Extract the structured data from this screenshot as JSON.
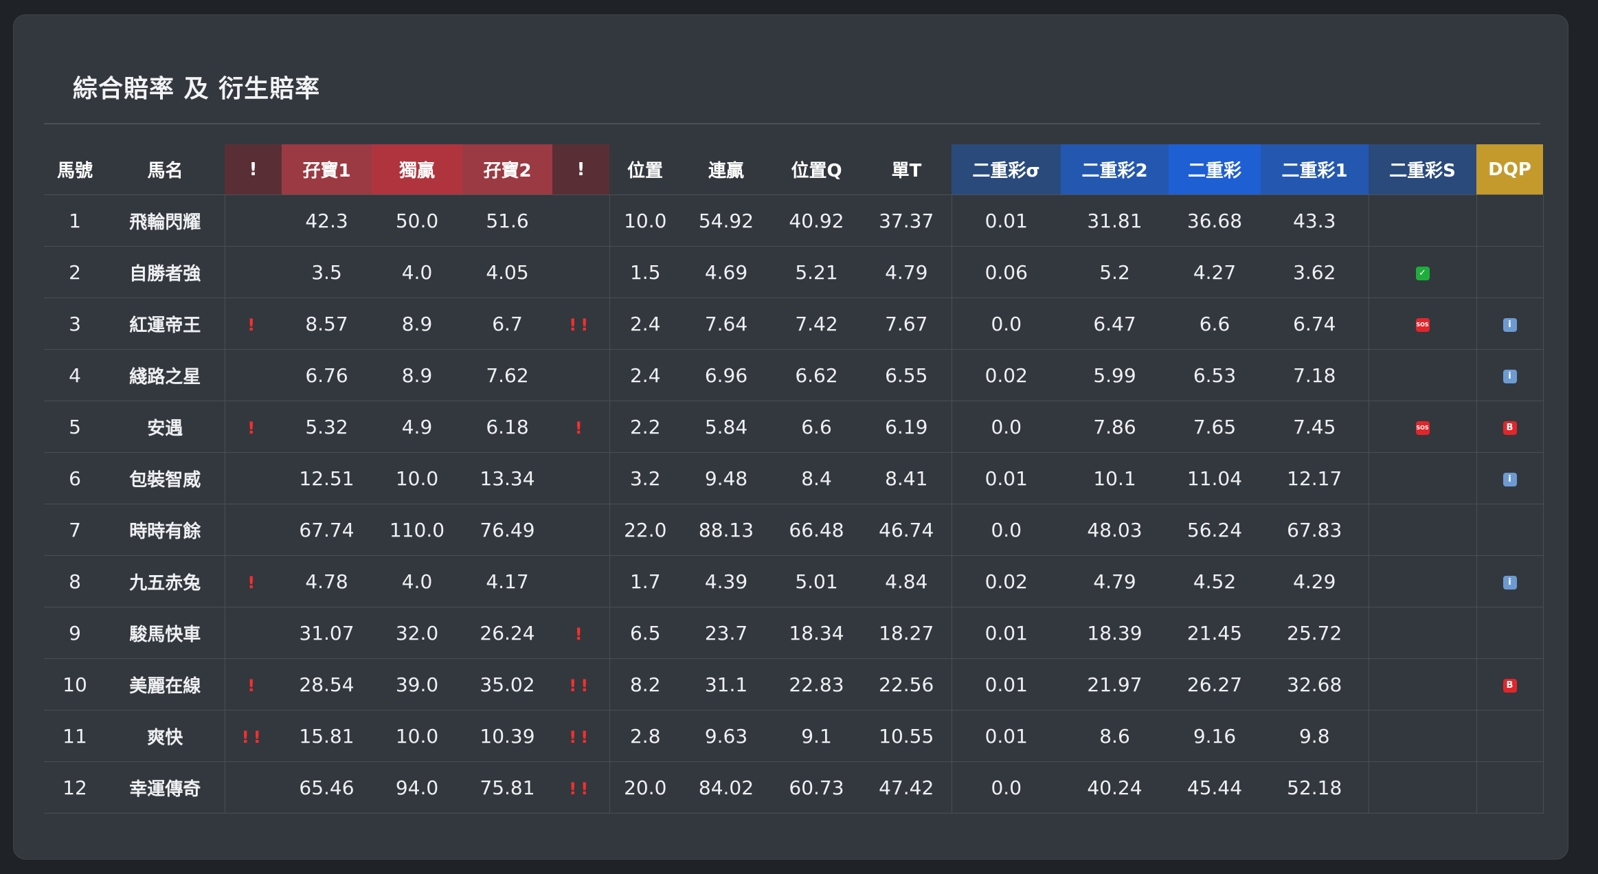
{
  "title": "綜合賠率 及 衍生賠率",
  "columns": [
    "馬號",
    "馬名",
    "!",
    "孖寶1",
    "獨贏",
    "孖寶2",
    "!",
    "位置",
    "連贏",
    "位置Q",
    "單T",
    "二重彩σ",
    "二重彩2",
    "二重彩",
    "二重彩1",
    "二重彩S",
    "DQP"
  ],
  "icons": {
    "check": "✓",
    "sos": "SOS",
    "info": "i",
    "b": "B"
  },
  "rows": [
    {
      "no": "1",
      "name": "飛輪閃耀",
      "f1": "",
      "dbl1": "42.3",
      "win": "50.0",
      "dbl2": "51.6",
      "f2": "",
      "place": "10.0",
      "qin": "54.92",
      "pq": "40.92",
      "tt": "37.37",
      "sig": "0.01",
      "ex2": "31.81",
      "ex": "36.68",
      "ex1": "43.3",
      "exs": "",
      "dqp": ""
    },
    {
      "no": "2",
      "name": "自勝者強",
      "f1": "",
      "dbl1": "3.5",
      "win": "4.0",
      "dbl2": "4.05",
      "f2": "",
      "place": "1.5",
      "qin": "4.69",
      "pq": "5.21",
      "tt": "4.79",
      "sig": "0.06",
      "ex2": "5.2",
      "ex": "4.27",
      "ex1": "3.62",
      "exs": "check",
      "dqp": ""
    },
    {
      "no": "3",
      "name": "紅運帝王",
      "f1": "!",
      "dbl1": "8.57",
      "win": "8.9",
      "dbl2": "6.7",
      "f2": "!!",
      "place": "2.4",
      "qin": "7.64",
      "pq": "7.42",
      "tt": "7.67",
      "sig": "0.0",
      "ex2": "6.47",
      "ex": "6.6",
      "ex1": "6.74",
      "exs": "sos",
      "dqp": "info"
    },
    {
      "no": "4",
      "name": "綫路之星",
      "f1": "",
      "dbl1": "6.76",
      "win": "8.9",
      "dbl2": "7.62",
      "f2": "",
      "place": "2.4",
      "qin": "6.96",
      "pq": "6.62",
      "tt": "6.55",
      "sig": "0.02",
      "ex2": "5.99",
      "ex": "6.53",
      "ex1": "7.18",
      "exs": "",
      "dqp": "info"
    },
    {
      "no": "5",
      "name": "安遇",
      "f1": "!",
      "dbl1": "5.32",
      "win": "4.9",
      "dbl2": "6.18",
      "f2": "!",
      "place": "2.2",
      "qin": "5.84",
      "pq": "6.6",
      "tt": "6.19",
      "sig": "0.0",
      "ex2": "7.86",
      "ex": "7.65",
      "ex1": "7.45",
      "exs": "sos",
      "dqp": "b"
    },
    {
      "no": "6",
      "name": "包裝智威",
      "f1": "",
      "dbl1": "12.51",
      "win": "10.0",
      "dbl2": "13.34",
      "f2": "",
      "place": "3.2",
      "qin": "9.48",
      "pq": "8.4",
      "tt": "8.41",
      "sig": "0.01",
      "ex2": "10.1",
      "ex": "11.04",
      "ex1": "12.17",
      "exs": "",
      "dqp": "info"
    },
    {
      "no": "7",
      "name": "時時有餘",
      "f1": "",
      "dbl1": "67.74",
      "win": "110.0",
      "dbl2": "76.49",
      "f2": "",
      "place": "22.0",
      "qin": "88.13",
      "pq": "66.48",
      "tt": "46.74",
      "sig": "0.0",
      "ex2": "48.03",
      "ex": "56.24",
      "ex1": "67.83",
      "exs": "",
      "dqp": ""
    },
    {
      "no": "8",
      "name": "九五赤兔",
      "f1": "!",
      "dbl1": "4.78",
      "win": "4.0",
      "dbl2": "4.17",
      "f2": "",
      "place": "1.7",
      "qin": "4.39",
      "pq": "5.01",
      "tt": "4.84",
      "sig": "0.02",
      "ex2": "4.79",
      "ex": "4.52",
      "ex1": "4.29",
      "exs": "",
      "dqp": "info"
    },
    {
      "no": "9",
      "name": "駿馬快車",
      "f1": "",
      "dbl1": "31.07",
      "win": "32.0",
      "dbl2": "26.24",
      "f2": "!",
      "place": "6.5",
      "qin": "23.7",
      "pq": "18.34",
      "tt": "18.27",
      "sig": "0.01",
      "ex2": "18.39",
      "ex": "21.45",
      "ex1": "25.72",
      "exs": "",
      "dqp": ""
    },
    {
      "no": "10",
      "name": "美麗在線",
      "f1": "!",
      "dbl1": "28.54",
      "win": "39.0",
      "dbl2": "35.02",
      "f2": "!!",
      "place": "8.2",
      "qin": "31.1",
      "pq": "22.83",
      "tt": "22.56",
      "sig": "0.01",
      "ex2": "21.97",
      "ex": "26.27",
      "ex1": "32.68",
      "exs": "",
      "dqp": "b"
    },
    {
      "no": "11",
      "name": "爽快",
      "f1": "!!",
      "dbl1": "15.81",
      "win": "10.0",
      "dbl2": "10.39",
      "f2": "!!",
      "place": "2.8",
      "qin": "9.63",
      "pq": "9.1",
      "tt": "10.55",
      "sig": "0.01",
      "ex2": "8.6",
      "ex": "9.16",
      "ex1": "9.8",
      "exs": "",
      "dqp": ""
    },
    {
      "no": "12",
      "name": "幸運傳奇",
      "f1": "",
      "dbl1": "65.46",
      "win": "94.0",
      "dbl2": "75.81",
      "f2": "!!",
      "place": "20.0",
      "qin": "84.02",
      "pq": "60.73",
      "tt": "47.42",
      "sig": "0.0",
      "ex2": "40.24",
      "ex": "45.44",
      "ex1": "52.18",
      "exs": "",
      "dqp": ""
    }
  ]
}
